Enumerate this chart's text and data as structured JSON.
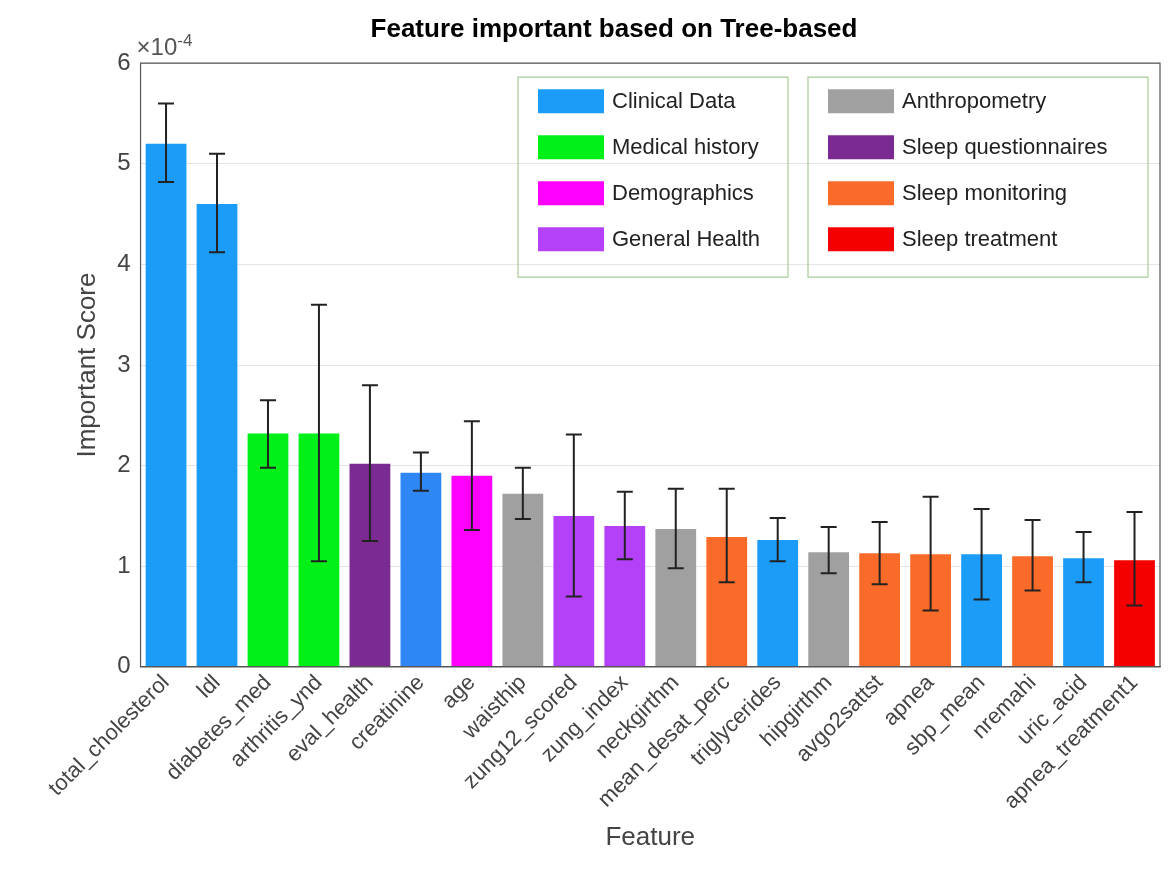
{
  "chart_data": {
    "type": "bar",
    "title": "Feature important based on Tree-based",
    "xlabel": "Feature",
    "ylabel": "Important Score",
    "categories": [
      "total_cholesterol",
      "ldl",
      "diabetes_med",
      "arthritis_ynd",
      "eval_health",
      "creatinine",
      "age",
      "waisthip",
      "zung12_scored",
      "zung_index",
      "neckgirthm",
      "mean_desat_perc",
      "triglycerides",
      "hipgirthm",
      "avgo2sattst",
      "apnea",
      "sbp_mean",
      "nremahi",
      "uric_acid",
      "apnea_treatment1"
    ],
    "stacked": true,
    "ylim": [
      0,
      6
    ],
    "yticks": [
      0,
      1,
      2,
      3,
      4,
      5,
      6
    ],
    "annotations": [
      "×10$^{-4}$"
    ],
    "grid": "y",
    "legend": "top right",
    "series": [
      {
        "name": "Clinical Data",
        "color": "#1a9cf8",
        "colors": [
          null,
          null,
          null,
          null,
          null,
          "#2f86f5",
          null,
          null,
          null,
          null,
          null,
          null,
          null,
          null,
          null,
          null,
          null,
          null,
          null,
          null
        ],
        "values": [
          5.2,
          4.6,
          null,
          null,
          null,
          1.93,
          null,
          null,
          null,
          null,
          null,
          null,
          1.26,
          null,
          null,
          null,
          1.12,
          null,
          1.08,
          null
        ],
        "errors": [
          [
            4.82,
            5.6
          ],
          [
            4.12,
            5.1
          ],
          null,
          null,
          null,
          [
            1.75,
            2.13
          ],
          null,
          null,
          null,
          null,
          null,
          null,
          [
            1.05,
            1.48
          ],
          null,
          null,
          null,
          [
            0.67,
            1.57
          ],
          null,
          [
            0.84,
            1.34
          ],
          null
        ]
      },
      {
        "name": "Medical history",
        "color": "#00f018",
        "values": [
          null,
          null,
          2.32,
          2.32,
          null,
          null,
          null,
          null,
          null,
          null,
          null,
          null,
          null,
          null,
          null,
          null,
          null,
          null,
          null,
          null
        ],
        "errors": [
          null,
          null,
          [
            1.98,
            2.65
          ],
          [
            1.05,
            3.6
          ],
          null,
          null,
          null,
          null,
          null,
          null,
          null,
          null,
          null,
          null,
          null,
          null,
          null,
          null,
          null,
          null
        ]
      },
      {
        "name": "Demographics",
        "color": "#ff00ff",
        "values": [
          null,
          null,
          null,
          null,
          null,
          null,
          1.9,
          null,
          null,
          null,
          null,
          null,
          null,
          null,
          null,
          null,
          null,
          null,
          null,
          null
        ],
        "errors": [
          null,
          null,
          null,
          null,
          null,
          null,
          [
            1.36,
            2.44
          ],
          null,
          null,
          null,
          null,
          null,
          null,
          null,
          null,
          null,
          null,
          null,
          null,
          null
        ]
      },
      {
        "name": "General Health",
        "color": "#b440f8",
        "values": [
          null,
          null,
          null,
          null,
          null,
          null,
          null,
          null,
          1.5,
          1.4,
          null,
          null,
          null,
          null,
          null,
          null,
          null,
          null,
          null,
          null
        ],
        "errors": [
          null,
          null,
          null,
          null,
          null,
          null,
          null,
          null,
          [
            0.7,
            2.31
          ],
          [
            1.07,
            1.74
          ],
          null,
          null,
          null,
          null,
          null,
          null,
          null,
          null,
          null,
          null
        ]
      },
      {
        "name": "Anthropometry",
        "color": "#a0a0a0",
        "values": [
          null,
          null,
          null,
          null,
          null,
          null,
          null,
          1.72,
          null,
          null,
          1.37,
          null,
          null,
          1.14,
          null,
          null,
          null,
          null,
          null,
          null
        ],
        "errors": [
          null,
          null,
          null,
          null,
          null,
          null,
          null,
          [
            1.47,
            1.98
          ],
          null,
          null,
          [
            0.98,
            1.77
          ],
          null,
          null,
          [
            0.93,
            1.39
          ],
          null,
          null,
          null,
          null,
          null,
          null
        ]
      },
      {
        "name": "Sleep questionnaires",
        "color": "#7a2a90",
        "values": [
          null,
          null,
          null,
          null,
          2.02,
          null,
          null,
          null,
          null,
          null,
          null,
          null,
          null,
          null,
          null,
          null,
          null,
          null,
          null,
          null
        ],
        "errors": [
          null,
          null,
          null,
          null,
          [
            1.25,
            2.8
          ],
          null,
          null,
          null,
          null,
          null,
          null,
          null,
          null,
          null,
          null,
          null,
          null,
          null,
          null,
          null
        ]
      },
      {
        "name": "Sleep monitoring",
        "color": "#fa6a28",
        "values": [
          null,
          null,
          null,
          null,
          null,
          null,
          null,
          null,
          null,
          null,
          null,
          1.29,
          null,
          null,
          1.13,
          1.12,
          null,
          1.1,
          null,
          null
        ],
        "errors": [
          null,
          null,
          null,
          null,
          null,
          null,
          null,
          null,
          null,
          null,
          null,
          [
            0.84,
            1.77
          ],
          null,
          null,
          [
            0.82,
            1.44
          ],
          [
            0.56,
            1.69
          ],
          null,
          [
            0.76,
            1.46
          ],
          null,
          null
        ]
      },
      {
        "name": "Sleep treatment",
        "color": "#f50000",
        "values": [
          null,
          null,
          null,
          null,
          null,
          null,
          null,
          null,
          null,
          null,
          null,
          null,
          null,
          null,
          null,
          null,
          null,
          null,
          null,
          1.06
        ],
        "errors": [
          null,
          null,
          null,
          null,
          null,
          null,
          null,
          null,
          null,
          null,
          null,
          null,
          null,
          null,
          null,
          null,
          null,
          null,
          null,
          [
            0.61,
            1.54
          ]
        ]
      }
    ]
  }
}
